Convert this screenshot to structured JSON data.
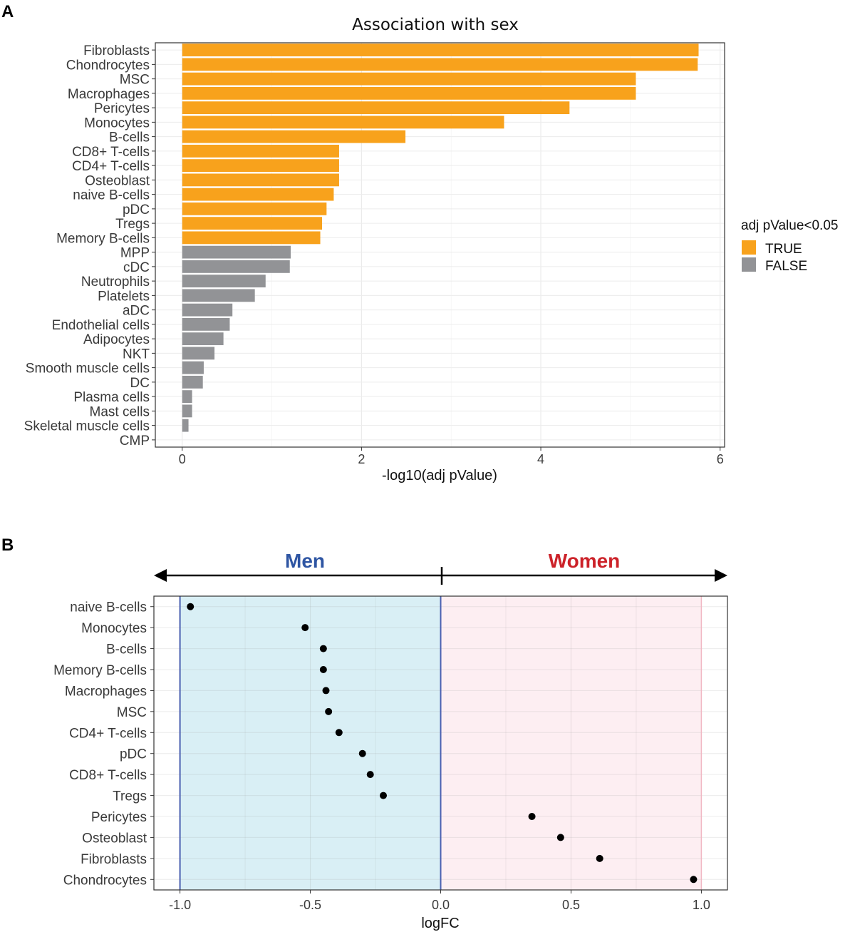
{
  "panel_a_label": "A",
  "panel_b_label": "B",
  "colors": {
    "true": "#f8a21c",
    "false": "#929396",
    "men_bg": "#d9eff5",
    "women_bg": "#fdeef2",
    "men_text": "#2e55a3",
    "women_text": "#cc2229",
    "zero_line": "#4a5fb0",
    "right_line": "#f1b8c4"
  },
  "chart_data": [
    {
      "type": "bar",
      "orientation": "horizontal",
      "title": "Association with sex",
      "xlabel": "-log10(adj pValue)",
      "ylabel": "",
      "xlim": [
        -0.3,
        6.05
      ],
      "xticks": [
        0,
        2,
        4,
        6
      ],
      "grid": true,
      "legend": {
        "title": "adj pValue<0.05",
        "placement": "right",
        "entries": [
          {
            "key": "true",
            "label": "TRUE"
          },
          {
            "key": "false",
            "label": "FALSE"
          }
        ]
      },
      "categories": [
        "Fibroblasts",
        "Chondrocytes",
        "MSC",
        "Macrophages",
        "Pericytes",
        "Monocytes",
        "B-cells",
        "CD8+ T-cells",
        "CD4+ T-cells",
        "Osteoblast",
        "naive B-cells",
        "pDC",
        "Tregs",
        "Memory B-cells",
        "MPP",
        "cDC",
        "Neutrophils",
        "Platelets",
        "aDC",
        "Endothelial cells",
        "Adipocytes",
        "NKT",
        "Smooth muscle cells",
        "DC",
        "Plasma cells",
        "Mast cells",
        "Skeletal muscle cells",
        "CMP"
      ],
      "values": [
        5.76,
        5.75,
        5.06,
        5.06,
        4.32,
        3.59,
        2.49,
        1.75,
        1.75,
        1.75,
        1.69,
        1.61,
        1.56,
        1.54,
        1.21,
        1.2,
        0.93,
        0.81,
        0.56,
        0.53,
        0.46,
        0.36,
        0.24,
        0.23,
        0.11,
        0.11,
        0.07,
        0.0
      ],
      "significant": [
        true,
        true,
        true,
        true,
        true,
        true,
        true,
        true,
        true,
        true,
        true,
        true,
        true,
        true,
        false,
        false,
        false,
        false,
        false,
        false,
        false,
        false,
        false,
        false,
        false,
        false,
        false,
        false
      ]
    },
    {
      "type": "scatter",
      "title": "",
      "xlabel": "logFC",
      "ylabel": "",
      "xlim": [
        -1.1,
        1.1
      ],
      "xticks": [
        "-1.0",
        "-0.5",
        "0.0",
        "0.5",
        "1.0"
      ],
      "xtick_values": [
        -1.0,
        -0.5,
        0.0,
        0.5,
        1.0
      ],
      "grid": true,
      "region_labels": {
        "left": "Men",
        "right": "Women"
      },
      "categories": [
        "naive B-cells",
        "Monocytes",
        "B-cells",
        "Memory B-cells",
        "Macrophages",
        "MSC",
        "CD4+ T-cells",
        "pDC",
        "CD8+ T-cells",
        "Tregs",
        "Pericytes",
        "Osteoblast",
        "Fibroblasts",
        "Chondrocytes"
      ],
      "values": [
        -0.96,
        -0.52,
        -0.45,
        -0.45,
        -0.44,
        -0.43,
        -0.39,
        -0.3,
        -0.27,
        -0.22,
        0.35,
        0.46,
        0.61,
        0.97
      ]
    }
  ]
}
